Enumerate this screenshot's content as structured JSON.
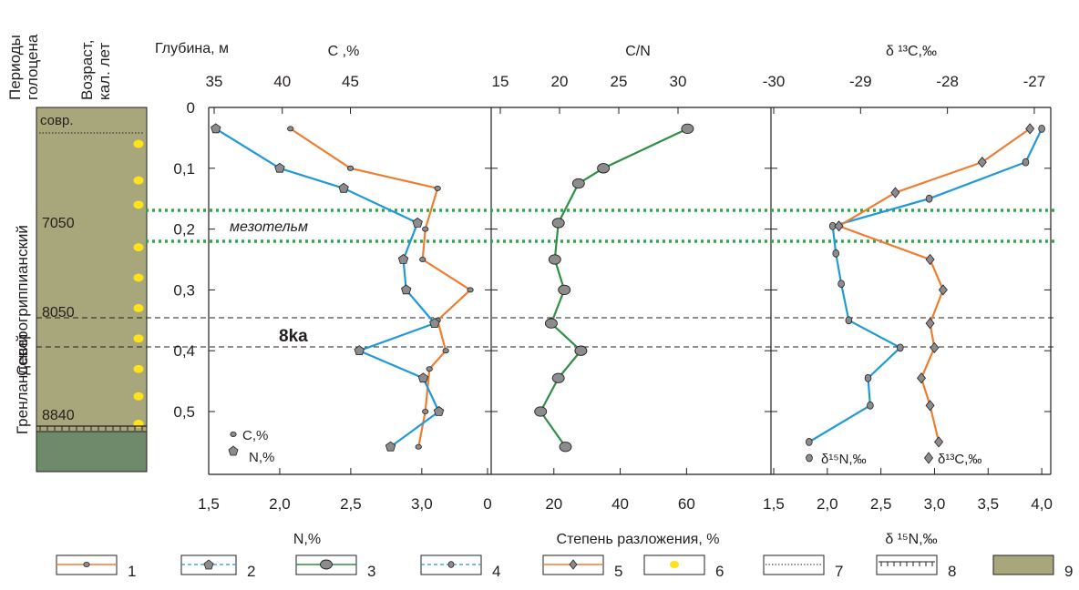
{
  "labels": {
    "col_periods": "Периоды голоцена",
    "col_periods_lines": [
      "Периоды",
      "голоцена"
    ],
    "col_age_lines": [
      "Возраст,",
      "кал. лет"
    ],
    "depth": "Глубина, м",
    "c_pct": "C ,%",
    "cn": "C/N",
    "d13c_top": "δ ¹³C,‰",
    "n_pct": "N,%",
    "decomp": "Степень разложения, %",
    "d15n_bottom": "δ ¹⁵N,‰",
    "mesotelm": "мезотельм",
    "event_8ka": "8ka",
    "period_north": "Северогриппианский",
    "period_green": "Гренландский",
    "age_modern": "совр.",
    "ages": [
      "7050",
      "8050",
      "8840"
    ],
    "legend_c": "C,%",
    "legend_n": "N,%",
    "legend_d15n": "δ¹⁵N,‰",
    "legend_d13c": "δ¹³C,‰"
  },
  "colors": {
    "c_line": "#ee7d31",
    "n_line": "#1f9ad6",
    "cn_line": "#2f8f46",
    "mesotelm_band": "#2aa84a",
    "column_fill": "#a8a67b",
    "column_bottom": "#6f8a6a",
    "marker_gray": "#8c8c8c",
    "dot_yellow": "#ffe21a"
  },
  "chart_data": [
    {
      "type": "line",
      "name": "panel-1",
      "y_axis": {
        "label": "Глубина, м",
        "range": [
          0,
          0.55
        ],
        "ticks": [
          "0",
          "0,1",
          "0,2",
          "0,3",
          "0,4",
          "0,5"
        ],
        "reversed": true
      },
      "x_top": {
        "label": "C ,%",
        "range": [
          35,
          55
        ],
        "ticks": [
          "35",
          "40",
          "45"
        ]
      },
      "x_bottom": {
        "label": "N,%",
        "range": [
          1.5,
          3.45
        ],
        "ticks": [
          "1,5",
          "2,0",
          "2,5",
          "3,0"
        ]
      },
      "series": [
        {
          "name": "C,%",
          "axis": "top",
          "points": [
            [
              40.6,
              0.035
            ],
            [
              45.0,
              0.1
            ],
            [
              51.4,
              0.133
            ],
            [
              50.5,
              0.2
            ],
            [
              50.3,
              0.25
            ],
            [
              53.8,
              0.3
            ],
            [
              51.4,
              0.35
            ],
            [
              52.0,
              0.4
            ],
            [
              50.8,
              0.43
            ],
            [
              50.5,
              0.5
            ],
            [
              50.0,
              0.558
            ]
          ]
        },
        {
          "name": "N,%",
          "axis": "bottom",
          "points": [
            [
              1.55,
              0.035
            ],
            [
              2.0,
              0.1
            ],
            [
              2.45,
              0.133
            ],
            [
              2.97,
              0.19
            ],
            [
              2.87,
              0.25
            ],
            [
              2.89,
              0.3
            ],
            [
              3.09,
              0.355
            ],
            [
              2.56,
              0.4
            ],
            [
              3.01,
              0.445
            ],
            [
              3.12,
              0.5
            ],
            [
              2.78,
              0.558
            ]
          ]
        }
      ],
      "legend": [
        "C,%",
        "N,%"
      ],
      "legend_position": "bottom-left"
    },
    {
      "type": "line",
      "name": "panel-2",
      "x_top": {
        "label": "C/N",
        "range": [
          15,
          33
        ],
        "ticks": [
          "15",
          "20",
          "25",
          "30"
        ]
      },
      "x_bottom": {
        "label": "Степень разложения, %",
        "range": [
          0,
          72
        ],
        "ticks": [
          "0",
          "20",
          "40",
          "60"
        ]
      },
      "series": [
        {
          "name": "C/N",
          "axis": "top",
          "points": [
            [
              30.8,
              0.035
            ],
            [
              23.7,
              0.1
            ],
            [
              21.6,
              0.125
            ],
            [
              19.9,
              0.19
            ],
            [
              19.6,
              0.25
            ],
            [
              20.4,
              0.3
            ],
            [
              19.3,
              0.355
            ],
            [
              21.8,
              0.4
            ],
            [
              19.9,
              0.445
            ],
            [
              18.4,
              0.5
            ],
            [
              20.5,
              0.558
            ]
          ]
        }
      ]
    },
    {
      "type": "line",
      "name": "panel-3",
      "x_top": {
        "label": "δ ¹³C,‰",
        "range": [
          -30,
          -26.8
        ],
        "ticks": [
          "-30",
          "-29",
          "-28",
          "-27"
        ]
      },
      "x_bottom": {
        "label": "δ ¹⁵N,‰",
        "range": [
          1.5,
          4.05
        ],
        "ticks": [
          "1,5",
          "2,0",
          "2,5",
          "3,0",
          "3,5",
          "4,0"
        ]
      },
      "series": [
        {
          "name": "δ¹⁵N,‰",
          "axis": "bottom",
          "points": [
            [
              4.0,
              0.035
            ],
            [
              3.85,
              0.09
            ],
            [
              2.95,
              0.15
            ],
            [
              2.05,
              0.195
            ],
            [
              2.08,
              0.24
            ],
            [
              2.13,
              0.29
            ],
            [
              2.2,
              0.35
            ],
            [
              2.68,
              0.395
            ],
            [
              2.38,
              0.445
            ],
            [
              2.4,
              0.49
            ],
            [
              1.83,
              0.55
            ]
          ]
        },
        {
          "name": "δ¹³C,‰",
          "axis": "top",
          "points": [
            [
              -27.05,
              0.035
            ],
            [
              -27.6,
              0.09
            ],
            [
              -28.6,
              0.14
            ],
            [
              -29.25,
              0.195
            ],
            [
              -28.2,
              0.25
            ],
            [
              -28.05,
              0.3
            ],
            [
              -28.2,
              0.355
            ],
            [
              -28.15,
              0.395
            ],
            [
              -28.3,
              0.445
            ],
            [
              -28.2,
              0.49
            ],
            [
              -28.1,
              0.55
            ]
          ]
        }
      ],
      "legend": [
        "δ¹⁵N,‰",
        "δ¹³C,‰"
      ],
      "legend_position": "bottom-right"
    }
  ],
  "reference_lines": {
    "mesotelm_depths": [
      0.17,
      0.22
    ],
    "ka8_depths": [
      0.35,
      0.395
    ],
    "label_8ka": "8ka"
  },
  "yellow_dot_depths": [
    0.03,
    0.09,
    0.13,
    0.2,
    0.25,
    0.3,
    0.35,
    0.4,
    0.445,
    0.49
  ],
  "legend_bottom": [
    "1",
    "2",
    "3",
    "4",
    "5",
    "6",
    "7",
    "8",
    "9"
  ]
}
